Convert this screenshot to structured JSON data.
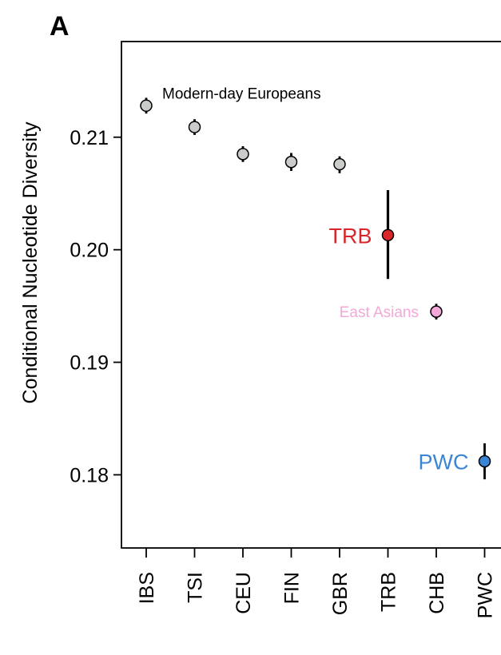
{
  "panel_label": "A",
  "chart_data": {
    "type": "scatter",
    "ylabel": "Conditional Nucleotide Diversity",
    "xlabel": "",
    "ylim": [
      0.1735,
      0.2185
    ],
    "yticks": [
      0.18,
      0.19,
      0.2,
      0.21
    ],
    "grid": false,
    "categories": [
      "IBS",
      "TSI",
      "CEU",
      "FIN",
      "GBR",
      "TRB",
      "CHB",
      "PWC"
    ],
    "points": [
      {
        "label": "IBS",
        "y": 0.2128,
        "lo": 0.2121,
        "hi": 0.2135,
        "color": "#c9ccc9"
      },
      {
        "label": "TSI",
        "y": 0.2109,
        "lo": 0.2102,
        "hi": 0.2116,
        "color": "#c9ccc9"
      },
      {
        "label": "CEU",
        "y": 0.2085,
        "lo": 0.2078,
        "hi": 0.2092,
        "color": "#c9ccc9"
      },
      {
        "label": "FIN",
        "y": 0.2078,
        "lo": 0.207,
        "hi": 0.2086,
        "color": "#c9ccc9"
      },
      {
        "label": "GBR",
        "y": 0.2076,
        "lo": 0.2068,
        "hi": 0.2083,
        "color": "#c9ccc9"
      },
      {
        "label": "TRB",
        "y": 0.2013,
        "lo": 0.1974,
        "hi": 0.2053,
        "color": "#d8262b"
      },
      {
        "label": "CHB",
        "y": 0.1945,
        "lo": 0.1938,
        "hi": 0.1952,
        "color": "#f4a8d8"
      },
      {
        "label": "PWC",
        "y": 0.1812,
        "lo": 0.1796,
        "hi": 0.1828,
        "color": "#3a86d6"
      }
    ],
    "annotations": [
      {
        "text": "Modern-day Europeans",
        "near": "IBS",
        "color": "#000000"
      },
      {
        "text": "TRB",
        "near": "TRB",
        "color": "#d8262b"
      },
      {
        "text": "East Asians",
        "near": "CHB",
        "color": "#f4a8d8"
      },
      {
        "text": "PWC",
        "near": "PWC",
        "color": "#3a86d6"
      }
    ]
  }
}
